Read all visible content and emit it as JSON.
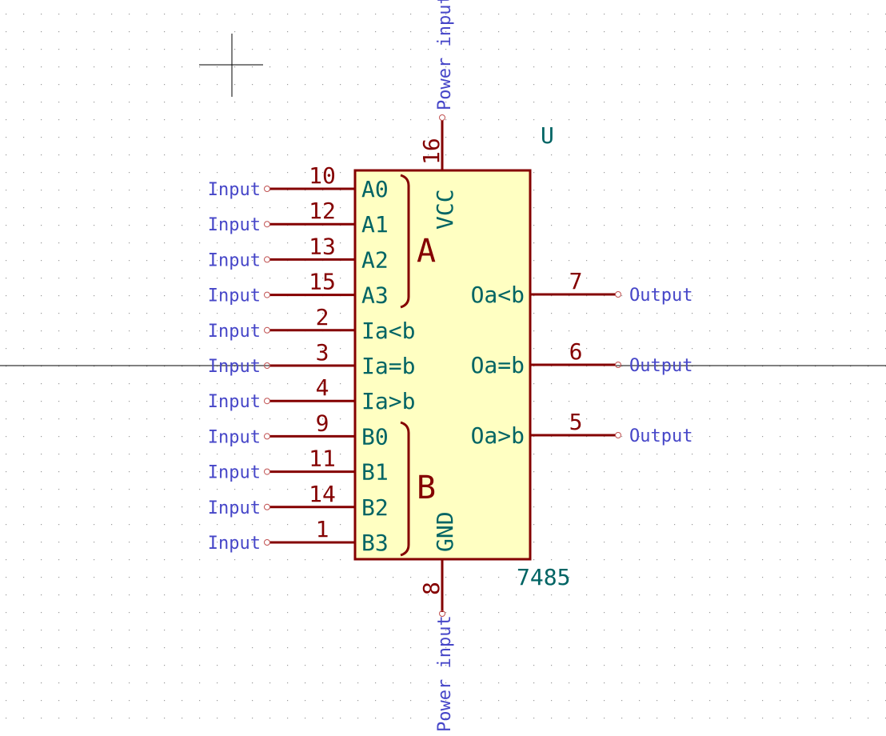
{
  "colors": {
    "body_fill": "#ffffc2",
    "body_stroke": "#840000",
    "pin_number": "#840000",
    "pin_name": "#006464",
    "electrical_type": "#4646c8",
    "grid": "#9a9a9a",
    "crosshair": "#000000"
  },
  "component": {
    "reference": "U",
    "value": "7485"
  },
  "groups": {
    "a_label": "A",
    "b_label": "B"
  },
  "left_pins": [
    {
      "number": "10",
      "name": "A0",
      "type": "Input"
    },
    {
      "number": "12",
      "name": "A1",
      "type": "Input"
    },
    {
      "number": "13",
      "name": "A2",
      "type": "Input"
    },
    {
      "number": "15",
      "name": "A3",
      "type": "Input"
    },
    {
      "number": "2",
      "name": "Ia<b",
      "type": "Input"
    },
    {
      "number": "3",
      "name": "Ia=b",
      "type": "Input"
    },
    {
      "number": "4",
      "name": "Ia>b",
      "type": "Input"
    },
    {
      "number": "9",
      "name": "B0",
      "type": "Input"
    },
    {
      "number": "11",
      "name": "B1",
      "type": "Input"
    },
    {
      "number": "14",
      "name": "B2",
      "type": "Input"
    },
    {
      "number": "1",
      "name": "B3",
      "type": "Input"
    }
  ],
  "right_pins": [
    {
      "number": "7",
      "name": "Oa<b",
      "type": "Output"
    },
    {
      "number": "6",
      "name": "Oa=b",
      "type": "Output"
    },
    {
      "number": "5",
      "name": "Oa>b",
      "type": "Output"
    }
  ],
  "top_pin": {
    "number": "16",
    "name": "VCC",
    "type": "Power input"
  },
  "bottom_pin": {
    "number": "8",
    "name": "GND",
    "type": "Power input"
  }
}
